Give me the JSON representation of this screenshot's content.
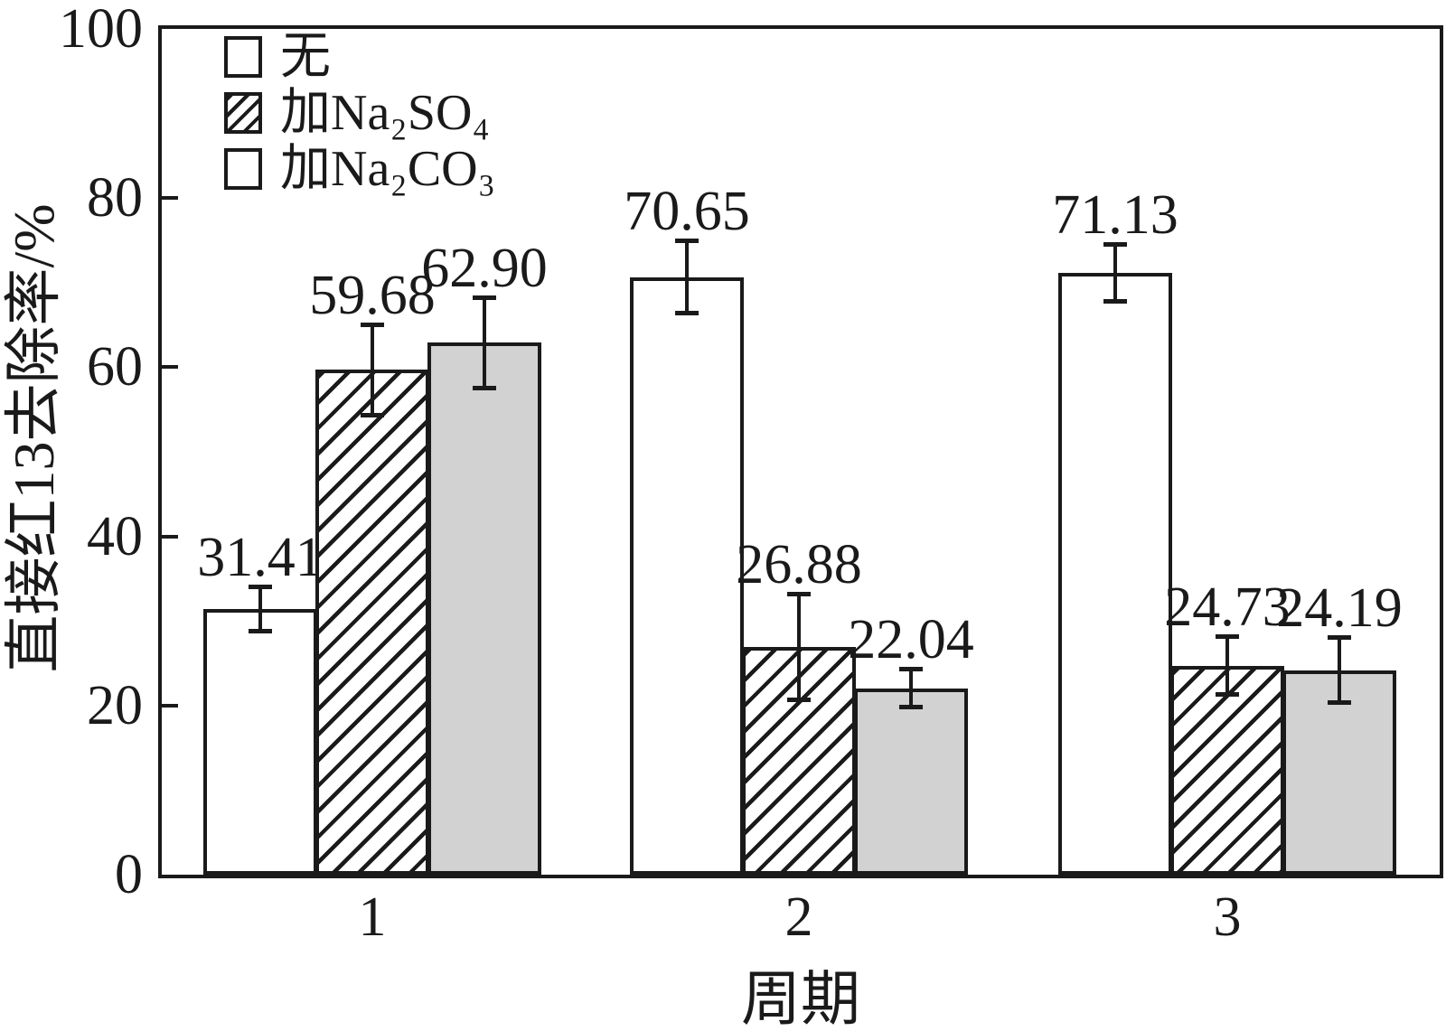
{
  "figure": {
    "background": "#ffffff",
    "ink": "#1a1a1a",
    "bar_gray_fill": "#d2d2d2",
    "bar_white_fill": "#ffffff"
  },
  "chart_data": {
    "type": "bar",
    "title": "",
    "xlabel": "周期",
    "ylabel": "直接红13去除率/%",
    "ylim": [
      0,
      100
    ],
    "yticks": [
      0,
      20,
      40,
      60,
      80,
      100
    ],
    "categories": [
      "1",
      "2",
      "3"
    ],
    "grid": false,
    "legend_position": "top-left inside plot",
    "series": [
      {
        "name": "无",
        "fill": "white",
        "values": [
          31.41,
          70.65,
          71.13
        ],
        "errors": [
          2.7,
          4.3,
          3.4
        ]
      },
      {
        "name": "加Na₂SO₄",
        "fill": "hatch",
        "values": [
          59.68,
          26.88,
          24.73
        ],
        "errors": [
          5.4,
          6.3,
          3.5
        ]
      },
      {
        "name": "加Na₂CO₃",
        "fill": "gray",
        "values": [
          62.9,
          22.04,
          24.19
        ],
        "errors": [
          5.4,
          2.3,
          3.9
        ]
      }
    ],
    "value_labels": [
      [
        "31.41",
        "70.65",
        "71.13"
      ],
      [
        "59.68",
        "26.88",
        "24.73"
      ],
      [
        "62.90",
        "22.04",
        "24.19"
      ]
    ]
  }
}
